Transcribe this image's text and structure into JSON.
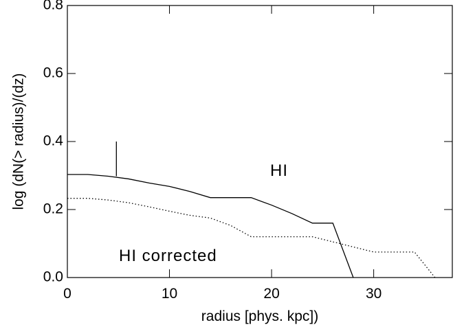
{
  "chart_data": {
    "type": "line",
    "xlabel": "radius [phys. kpc])",
    "ylabel": "log (dN(> radius)/(dz)",
    "xlim": [
      0,
      37.7
    ],
    "ylim": [
      0,
      0.8
    ],
    "xticks": [
      0,
      10,
      20,
      30
    ],
    "yticks": [
      {
        "value": 0,
        "label": "0.0"
      },
      {
        "value": 0.2,
        "label": "0.2"
      },
      {
        "value": 0.4,
        "label": "0.4"
      },
      {
        "value": 0.6,
        "label": "0.6"
      },
      {
        "value": 0.8,
        "label": "0.8"
      }
    ],
    "x": [
      0,
      2,
      4,
      6,
      8,
      10,
      12,
      14,
      16,
      18,
      20,
      22,
      24,
      26,
      28,
      30,
      32,
      34,
      36
    ],
    "series": [
      {
        "color": "#000000",
        "dash": "solid",
        "values": [
          0.303,
          0.303,
          0.298,
          0.29,
          0.278,
          0.268,
          0.253,
          0.235,
          0.235,
          0.235,
          0.213,
          0.188,
          0.16,
          0.16,
          0.0,
          null,
          null,
          null,
          null
        ]
      },
      {
        "color": "#000000",
        "dash": "dotted",
        "values": [
          0.233,
          0.233,
          0.228,
          0.22,
          0.208,
          0.195,
          0.183,
          0.175,
          0.153,
          0.12,
          0.12,
          0.12,
          0.12,
          0.105,
          0.09,
          0.075,
          0.075,
          0.075,
          0.0
        ]
      }
    ],
    "marker": {
      "x": 4.8,
      "y": [
        0.298,
        0.4
      ]
    },
    "annotations": [
      "HI",
      "HI corrected"
    ]
  }
}
